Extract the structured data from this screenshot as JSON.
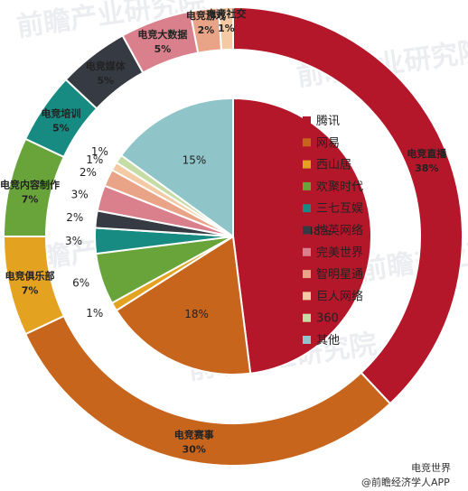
{
  "chart_data": [
    {
      "type": "pie",
      "subtype": "donut-outer",
      "categories": [
        "电竞直播",
        "电竞赛事",
        "电竞俱乐部",
        "电竞内容制作",
        "电竞培训",
        "电竞媒体",
        "电竞大数据",
        "电竞游戏",
        "电竞社交"
      ],
      "values": [
        38,
        30,
        7,
        7,
        5,
        5,
        5,
        2,
        1
      ],
      "value_labels": [
        "38%",
        "30%",
        "7%",
        "7%",
        "5%",
        "5%",
        "5%",
        "2%",
        "1%"
      ],
      "colors": [
        "#b5172a",
        "#c8651d",
        "#e4a221",
        "#68a43a",
        "#178a82",
        "#363b43",
        "#d9808c",
        "#e9a487",
        "#f3caa3"
      ]
    },
    {
      "type": "pie",
      "subtype": "inner",
      "categories": [
        "腾讯",
        "网易",
        "西山居",
        "欢聚时代",
        "三七互娱",
        "恺英网络",
        "完美世界",
        "智明星通",
        "巨人网络",
        "360",
        "其他"
      ],
      "values": [
        48,
        18,
        1,
        6,
        3,
        2,
        3,
        2,
        1,
        1,
        15
      ],
      "value_labels": [
        "48%",
        "18%",
        "1%",
        "6%",
        "3%",
        "2%",
        "3%",
        "2%",
        "1%",
        "1%",
        "15%"
      ],
      "colors": [
        "#b5172a",
        "#c8651d",
        "#e4a221",
        "#68a43a",
        "#178a82",
        "#363b43",
        "#d9808c",
        "#e9a487",
        "#f3caa3",
        "#c5dca4",
        "#8fc4c8"
      ],
      "legend": {
        "placement": "center-right"
      }
    }
  ],
  "footer": {
    "line1": "电竞世界",
    "line2": "@前瞻经济学人APP"
  },
  "watermark": {
    "text": "前瞻产业研究院"
  }
}
